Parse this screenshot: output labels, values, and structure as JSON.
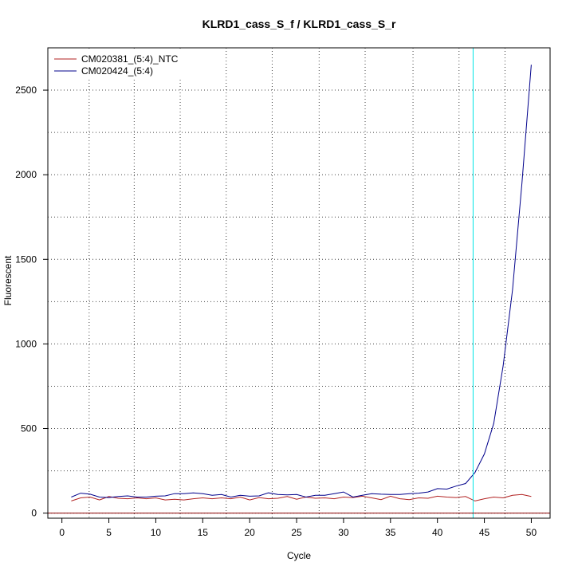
{
  "chart_data": {
    "type": "line",
    "title": "KLRD1_cass_S_f / KLRD1_cass_S_r",
    "xlabel": "Cycle",
    "ylabel": "Fluorescent",
    "xlim": [
      -1.5,
      52
    ],
    "ylim": [
      -30,
      2750
    ],
    "xticks": [
      0,
      5,
      10,
      15,
      20,
      25,
      30,
      35,
      40,
      45,
      50
    ],
    "yticks": [
      0,
      500,
      1000,
      1500,
      2000,
      2500
    ],
    "x_gridlines": [
      2.9,
      7.7,
      12.6,
      17.5,
      22.4,
      27.4,
      32.3,
      37.4,
      42.3,
      47.2
    ],
    "y_gridlines": [
      0,
      250,
      500,
      750,
      1000,
      1250,
      1500,
      1750,
      2000,
      2250,
      2500
    ],
    "grid": true,
    "legend_position": "top-left",
    "threshold_x": 43.8,
    "threshold_color": "#00e5e5",
    "baseline_y": 0,
    "baseline_color": "#8b0000",
    "series": [
      {
        "name": "CM020381_(5:4)_NTC",
        "color": "#b22222",
        "x": [
          1,
          2,
          3,
          4,
          5,
          6,
          7,
          8,
          9,
          10,
          11,
          12,
          13,
          14,
          15,
          16,
          17,
          18,
          19,
          20,
          21,
          22,
          23,
          24,
          25,
          26,
          27,
          28,
          29,
          30,
          31,
          32,
          33,
          34,
          35,
          36,
          37,
          38,
          39,
          40,
          41,
          42,
          43,
          44,
          45,
          46,
          47,
          48,
          49,
          50
        ],
        "y": [
          72,
          90,
          95,
          78,
          98,
          88,
          85,
          90,
          85,
          90,
          78,
          82,
          78,
          85,
          90,
          85,
          90,
          85,
          95,
          78,
          92,
          85,
          88,
          98,
          82,
          95,
          88,
          90,
          85,
          95,
          92,
          100,
          90,
          80,
          100,
          85,
          80,
          90,
          88,
          100,
          95,
          92,
          98,
          72,
          85,
          95,
          90,
          105,
          110,
          98
        ]
      },
      {
        "name": "CM020424_(5:4)",
        "color": "#00008b",
        "x": [
          1,
          2,
          3,
          4,
          5,
          6,
          7,
          8,
          9,
          10,
          11,
          12,
          13,
          14,
          15,
          16,
          17,
          18,
          19,
          20,
          21,
          22,
          23,
          24,
          25,
          26,
          27,
          28,
          29,
          30,
          31,
          32,
          33,
          34,
          35,
          36,
          37,
          38,
          39,
          40,
          41,
          42,
          43,
          44,
          45,
          46,
          47,
          48,
          49,
          50
        ],
        "y": [
          95,
          118,
          112,
          95,
          92,
          98,
          102,
          95,
          95,
          100,
          102,
          115,
          115,
          120,
          115,
          105,
          110,
          95,
          105,
          100,
          102,
          120,
          110,
          108,
          110,
          95,
          105,
          105,
          115,
          125,
          95,
          105,
          115,
          112,
          110,
          110,
          115,
          118,
          125,
          145,
          142,
          160,
          175,
          240,
          350,
          530,
          870,
          1320,
          1950,
          2650
        ]
      }
    ]
  }
}
